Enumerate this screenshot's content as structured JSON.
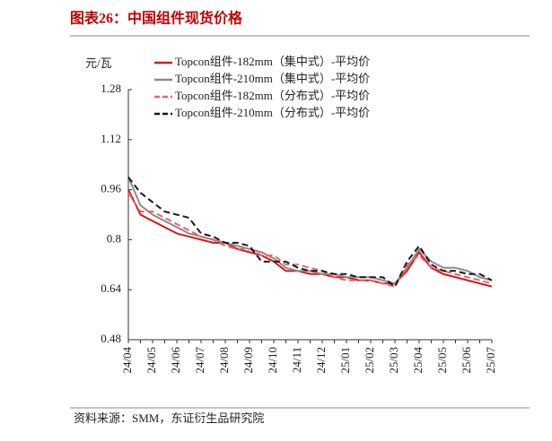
{
  "chart_data": {
    "type": "line",
    "title": "图表26：中国组件现货价格",
    "y_label": "元/瓦",
    "source": "资料来源：SMM，东证衍生品研究院",
    "categories": [
      "24/04",
      null,
      "24/05",
      null,
      "24/06",
      null,
      "24/07",
      null,
      "24/08",
      null,
      "24/09",
      null,
      "24/10",
      null,
      "24/11",
      null,
      "24/12",
      null,
      "25/01",
      null,
      "25/02",
      null,
      "25/03",
      null,
      "25/04",
      null,
      "25/05",
      null,
      "25/06",
      null,
      "25/07"
    ],
    "ylim": [
      0.48,
      1.28
    ],
    "yticks": [
      0.48,
      0.64,
      0.8,
      0.96,
      1.12,
      1.28
    ],
    "series": [
      {
        "name": "Topcon组件-182mm（集中式）-平均价",
        "color": "#d7191c",
        "dash": false,
        "values": [
          0.96,
          0.88,
          0.86,
          0.84,
          0.82,
          0.81,
          0.8,
          0.79,
          0.79,
          0.77,
          0.76,
          0.75,
          0.73,
          0.7,
          0.7,
          0.69,
          0.69,
          0.68,
          0.68,
          0.67,
          0.67,
          0.66,
          0.66,
          0.7,
          0.76,
          0.71,
          0.69,
          0.68,
          0.67,
          0.66,
          0.65
        ]
      },
      {
        "name": "Topcon组件-210mm（集中式）-平均价",
        "color": "#8c8c8c",
        "dash": false,
        "values": [
          1.0,
          0.91,
          0.88,
          0.86,
          0.84,
          0.82,
          0.81,
          0.8,
          0.79,
          0.78,
          0.77,
          0.76,
          0.74,
          0.71,
          0.7,
          0.7,
          0.69,
          0.69,
          0.68,
          0.68,
          0.68,
          0.67,
          0.66,
          0.71,
          0.77,
          0.73,
          0.71,
          0.71,
          0.7,
          0.68,
          0.67
        ]
      },
      {
        "name": "Topcon组件-182mm（分布式）-平均价",
        "color": "#f0606a",
        "dash": true,
        "values": [
          0.95,
          0.89,
          0.89,
          0.87,
          0.85,
          0.83,
          0.81,
          0.8,
          0.78,
          0.77,
          0.77,
          0.75,
          0.75,
          0.72,
          0.72,
          0.71,
          0.7,
          0.68,
          0.67,
          0.67,
          0.67,
          0.66,
          0.65,
          0.72,
          0.75,
          0.71,
          0.7,
          0.69,
          0.68,
          0.67,
          0.66
        ]
      },
      {
        "name": "Topcon组件-210mm（分布式）-平均价",
        "color": "#1a1a1a",
        "dash": true,
        "values": [
          1.0,
          0.95,
          0.92,
          0.89,
          0.88,
          0.87,
          0.82,
          0.81,
          0.79,
          0.79,
          0.78,
          0.73,
          0.73,
          0.73,
          0.71,
          0.7,
          0.7,
          0.69,
          0.69,
          0.68,
          0.68,
          0.68,
          0.65,
          0.73,
          0.78,
          0.72,
          0.7,
          0.7,
          0.69,
          0.69,
          0.67
        ]
      }
    ]
  }
}
